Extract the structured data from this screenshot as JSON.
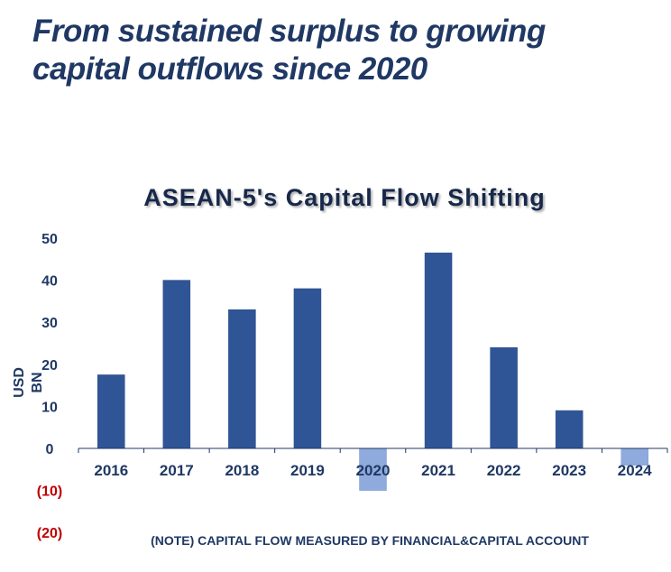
{
  "slide": {
    "title_line1": "From sustained surplus to growing",
    "title_line2": "capital outflows since 2020"
  },
  "chart_data": {
    "type": "bar",
    "title": "ASEAN-5's Capital Flow Shifting",
    "ylabel": "USD BN",
    "xlabel": "",
    "categories": [
      "2016",
      "2017",
      "2018",
      "2019",
      "2020",
      "2021",
      "2022",
      "2023",
      "2024"
    ],
    "values": [
      17.5,
      40,
      33,
      38,
      -10,
      46.5,
      24,
      9,
      -4
    ],
    "ylim": [
      -20,
      50
    ],
    "yticks": [
      50,
      40,
      30,
      20,
      10,
      0,
      -10,
      -20
    ],
    "ytick_labels": [
      "50",
      "40",
      "30",
      "20",
      "10",
      "0",
      "(10)",
      "(20)"
    ],
    "grid": false,
    "legend": "none",
    "colors": {
      "positive": "#2f5597",
      "negative": "#8faadc",
      "negative_tick": "#c00000",
      "axis_text": "#1f3864"
    },
    "note": "(NOTE) CAPITAL FLOW MEASURED BY FINANCIAL&CAPITAL ACCOUNT"
  }
}
